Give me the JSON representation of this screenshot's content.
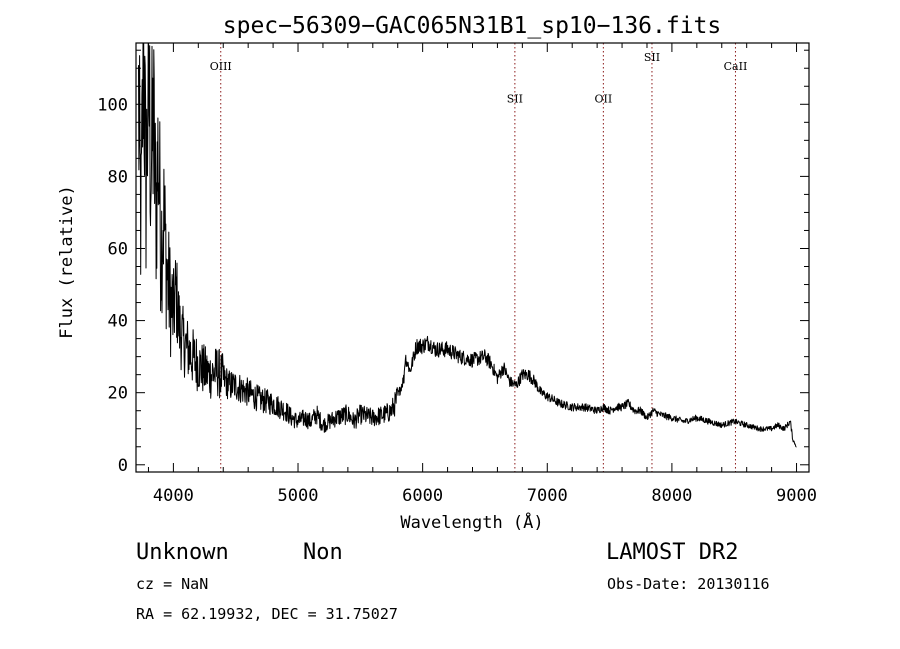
{
  "chart_data": {
    "type": "line",
    "title": "spec−56309−GAC065N31B1_sp10−136.fits",
    "xlabel": "Wavelength (Å)",
    "ylabel": "Flux (relative)",
    "xlim": [
      3700,
      9100
    ],
    "ylim": [
      -2,
      117
    ],
    "x_ticks": [
      4000,
      5000,
      6000,
      7000,
      8000,
      9000
    ],
    "y_ticks": [
      0,
      20,
      40,
      60,
      80,
      100
    ],
    "grid": false,
    "colors": {
      "spectrum": "#000000",
      "line_marker": "#8b1a1a",
      "axes": "#000000"
    },
    "spectral_lines": [
      {
        "label": "OIII",
        "wavelength": 4380,
        "label_flux": 109.5
      },
      {
        "label": "SII",
        "wavelength": 6740,
        "label_flux": 100.5
      },
      {
        "label": "OII",
        "wavelength": 7450,
        "label_flux": 100.5
      },
      {
        "label": "SII",
        "wavelength": 7840,
        "label_flux": 112
      },
      {
        "label": "CaII",
        "wavelength": 8510,
        "label_flux": 109.5
      }
    ],
    "spectrum": {
      "x": [
        3720,
        3740,
        3760,
        3780,
        3800,
        3820,
        3840,
        3860,
        3880,
        3900,
        3920,
        3950,
        3980,
        4000,
        4020,
        4050,
        4080,
        4100,
        4150,
        4200,
        4250,
        4300,
        4350,
        4400,
        4450,
        4500,
        4600,
        4700,
        4800,
        4900,
        4950,
        5000,
        5050,
        5100,
        5150,
        5200,
        5300,
        5400,
        5450,
        5500,
        5600,
        5700,
        5750,
        5780,
        5800,
        5830,
        5850,
        5860,
        5900,
        5950,
        6000,
        6050,
        6100,
        6200,
        6300,
        6400,
        6500,
        6550,
        6600,
        6650,
        6700,
        6750,
        6800,
        6850,
        6900,
        6950,
        7000,
        7050,
        7100,
        7200,
        7300,
        7400,
        7450,
        7500,
        7550,
        7600,
        7650,
        7700,
        7750,
        7800,
        7850,
        7900,
        8000,
        8100,
        8200,
        8300,
        8400,
        8500,
        8600,
        8700,
        8800,
        8850,
        8900,
        8950,
        8970,
        9000
      ],
      "y": [
        100,
        65,
        118,
        75,
        108,
        82,
        95,
        70,
        88,
        60,
        70,
        52,
        45,
        42,
        48,
        38,
        34,
        33,
        30,
        28,
        26,
        25,
        26,
        24,
        22,
        22,
        20,
        18,
        17,
        15,
        13,
        12,
        13,
        12,
        14,
        11,
        13,
        14,
        12,
        14,
        13,
        14,
        15,
        17,
        19,
        22,
        24,
        30,
        26,
        33,
        33,
        34,
        32,
        32,
        30,
        29,
        30,
        28,
        24,
        27,
        23,
        22,
        25,
        25,
        23,
        20,
        19,
        18,
        17,
        16,
        16,
        15,
        16,
        15,
        16,
        16,
        17,
        15,
        15,
        13,
        15,
        14,
        13,
        12,
        13,
        12,
        11,
        12,
        11,
        10,
        10,
        11,
        10,
        12,
        7,
        5
      ]
    }
  },
  "footer": {
    "object_class": "Unknown",
    "object_subclass": "Non",
    "survey": "LAMOST DR2",
    "cz": "cz = NaN",
    "obs_date": "Obs-Date: 20130116",
    "coords": "RA =  62.19932, DEC =  31.75027"
  }
}
